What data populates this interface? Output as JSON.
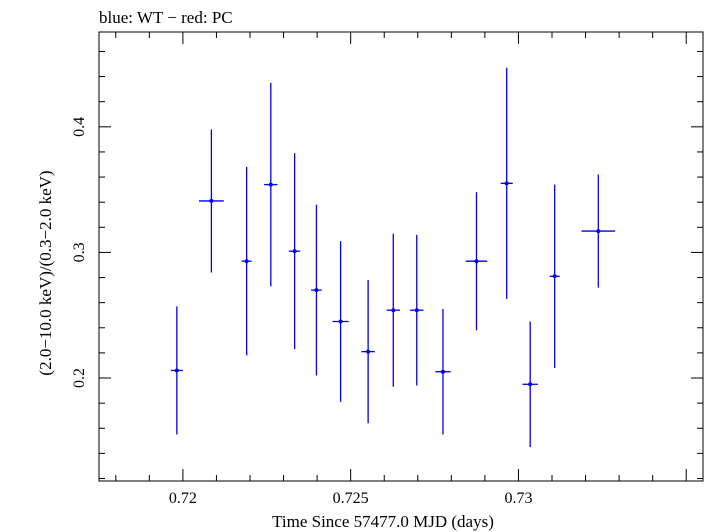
{
  "chart_data": {
    "type": "scatter",
    "title": "blue: WT − red: PC",
    "xlabel": "Time Since 57477.0 MJD (days)",
    "ylabel": "(2.0−10.0 keV)/(0.3−2.0 keV)",
    "xlim": [
      0.7175,
      0.7355
    ],
    "ylim": [
      0.118,
      0.4755
    ],
    "x_ticks": [
      {
        "value": 0.72,
        "label": "0.72"
      },
      {
        "value": 0.725,
        "label": "0.725"
      },
      {
        "value": 0.73,
        "label": "0.73"
      }
    ],
    "y_ticks": [
      {
        "value": 0.2,
        "label": "0.2"
      },
      {
        "value": 0.3,
        "label": "0.3"
      },
      {
        "value": 0.4,
        "label": "0.4"
      }
    ],
    "grid": false,
    "series": [
      {
        "color": "#0000ee",
        "points": [
          {
            "x": 0.71982,
            "xerr": 0.00018,
            "y": 0.206,
            "yerr": 0.051
          },
          {
            "x": 0.72085,
            "xerr": 0.00037,
            "y": 0.341,
            "yerr": 0.057
          },
          {
            "x": 0.7219,
            "xerr": 0.00015,
            "y": 0.293,
            "yerr": 0.075
          },
          {
            "x": 0.72262,
            "xerr": 0.0002,
            "y": 0.354,
            "yerr": 0.081
          },
          {
            "x": 0.72333,
            "xerr": 0.00017,
            "y": 0.301,
            "yerr": 0.078
          },
          {
            "x": 0.72398,
            "xerr": 0.00016,
            "y": 0.27,
            "yerr": 0.068
          },
          {
            "x": 0.7247,
            "xerr": 0.00024,
            "y": 0.245,
            "yerr": 0.064
          },
          {
            "x": 0.72552,
            "xerr": 0.0002,
            "y": 0.221,
            "yerr": 0.057
          },
          {
            "x": 0.72627,
            "xerr": 0.0002,
            "y": 0.254,
            "yerr": 0.061
          },
          {
            "x": 0.72697,
            "xerr": 0.0002,
            "y": 0.254,
            "yerr": 0.06
          },
          {
            "x": 0.72775,
            "xerr": 0.00023,
            "y": 0.205,
            "yerr": 0.05
          },
          {
            "x": 0.72875,
            "xerr": 0.00032,
            "y": 0.293,
            "yerr": 0.055
          },
          {
            "x": 0.72965,
            "xerr": 0.00018,
            "y": 0.355,
            "yerr": 0.092
          },
          {
            "x": 0.73035,
            "xerr": 0.00023,
            "y": 0.195,
            "yerr": 0.05
          },
          {
            "x": 0.73108,
            "xerr": 0.00015,
            "y": 0.281,
            "yerr": 0.073
          },
          {
            "x": 0.73238,
            "xerr": 0.0005,
            "y": 0.317,
            "yerr": 0.045
          }
        ]
      }
    ]
  }
}
